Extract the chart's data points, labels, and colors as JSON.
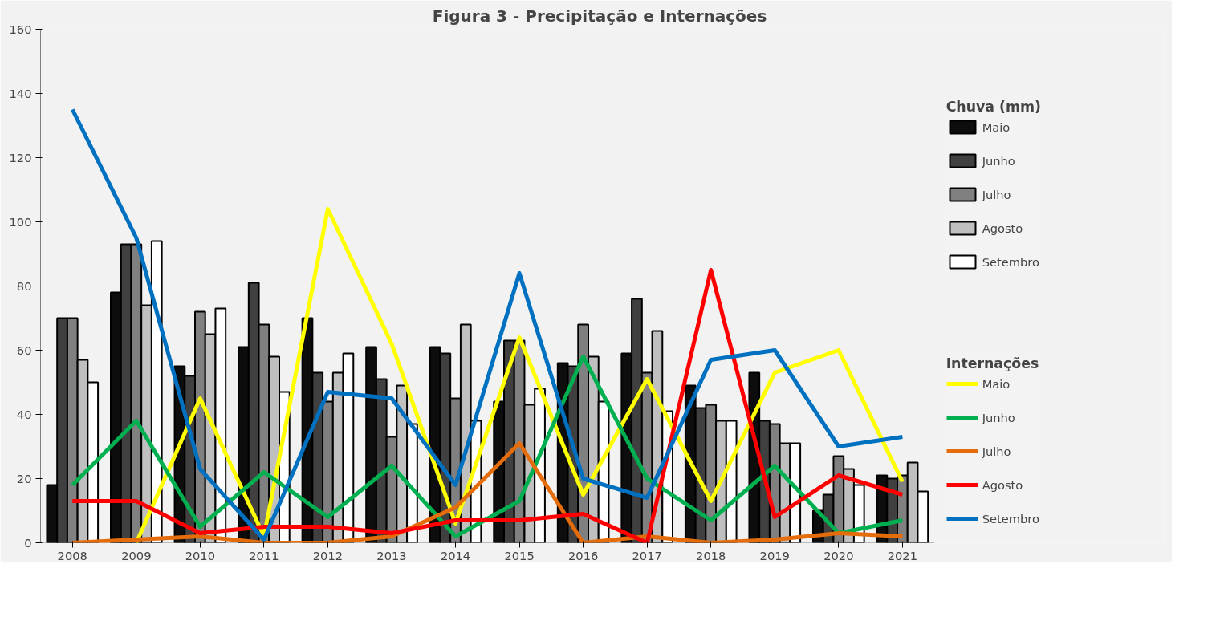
{
  "chart_data": {
    "type": "bar",
    "title": "Figura 3 -  Precipitação e Internações",
    "categories": [
      "2008",
      "2009",
      "2010",
      "2011",
      "2012",
      "2013",
      "2014",
      "2015",
      "2016",
      "2017",
      "2018",
      "2019",
      "2020",
      "2021"
    ],
    "legend_title": "Chuva (mm)",
    "annotations": [
      "Internações"
    ],
    "series": [
      {
        "name": "Maio",
        "color": "#0d0d0d",
        "values": [
          18,
          78,
          55,
          61,
          70,
          61,
          61,
          44,
          56,
          59,
          49,
          53,
          10,
          21
        ]
      },
      {
        "name": "Junho",
        "color": "#404040",
        "values": [
          70,
          93,
          52,
          81,
          53,
          51,
          59,
          63,
          55,
          76,
          42,
          38,
          15,
          20
        ]
      },
      {
        "name": "Julho",
        "color": "#808080",
        "values": [
          70,
          93,
          72,
          68,
          44,
          33,
          45,
          63,
          68,
          53,
          43,
          37,
          27,
          21
        ]
      },
      {
        "name": "Agosto",
        "color": "#bfbfbf",
        "values": [
          57,
          74,
          65,
          58,
          53,
          49,
          68,
          43,
          58,
          66,
          38,
          31,
          23,
          25
        ]
      },
      {
        "name": "Setembro",
        "color": "#ffffff",
        "values": [
          50,
          94,
          73,
          47,
          59,
          37,
          38,
          48,
          44,
          41,
          38,
          31,
          18,
          16
        ]
      },
      {
        "name": "Maio",
        "type": "line",
        "color": "#ffff00",
        "values": [
          null,
          0,
          45,
          2,
          104,
          62,
          6,
          64,
          15,
          51,
          13,
          53,
          60,
          19
        ]
      },
      {
        "name": "Junho",
        "type": "line",
        "color": "#00b050",
        "values": [
          18,
          38,
          5,
          22,
          8,
          24,
          2,
          13,
          58,
          20,
          7,
          24,
          3,
          7
        ]
      },
      {
        "name": "Julho",
        "type": "line",
        "color": "#e46c0a",
        "values": [
          0,
          1,
          2,
          0,
          0,
          2,
          11,
          31,
          0,
          2,
          0,
          1,
          3,
          2
        ]
      },
      {
        "name": "Agosto",
        "type": "line",
        "color": "#ff0000",
        "values": [
          13,
          13,
          3,
          5,
          5,
          3,
          7,
          7,
          9,
          0,
          85,
          8,
          21,
          15
        ]
      },
      {
        "name": "Setembro",
        "type": "line",
        "color": "#0070c0",
        "values": [
          135,
          95,
          23,
          1,
          47,
          45,
          18,
          84,
          20,
          14,
          57,
          60,
          30,
          33
        ]
      }
    ],
    "ylim": [
      0,
      160
    ],
    "yticks": [
      0,
      20,
      40,
      60,
      80,
      100,
      120,
      140,
      160
    ],
    "grid": false,
    "legend": "right"
  }
}
